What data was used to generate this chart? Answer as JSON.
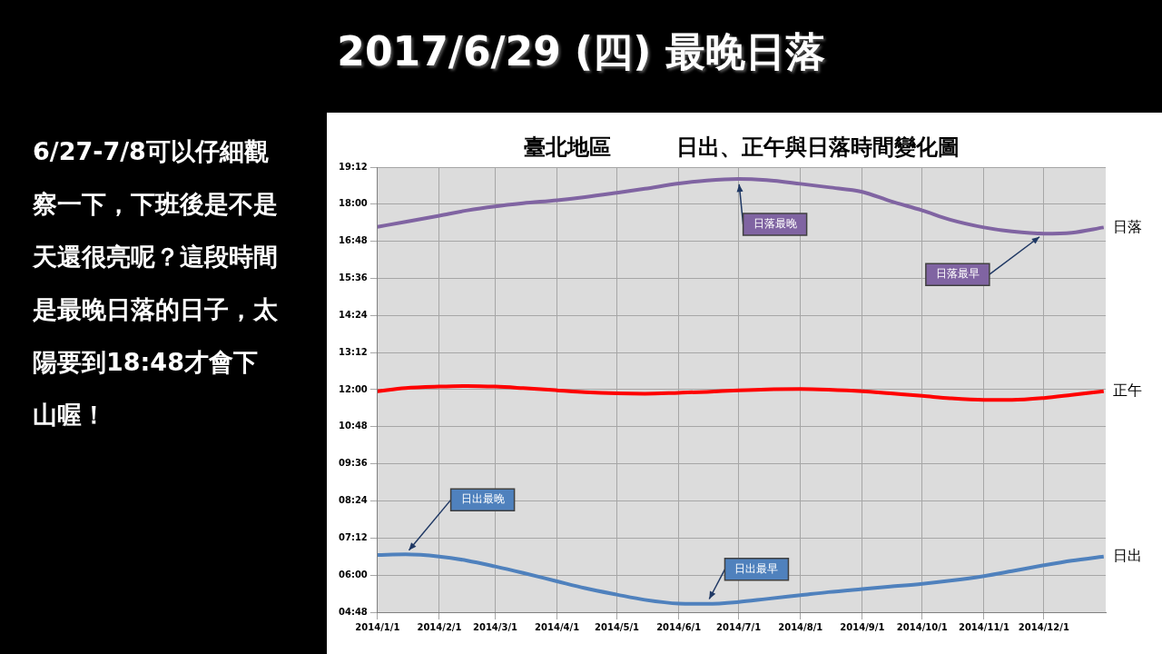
{
  "chart_data": {
    "type": "line",
    "title": "2017/6/29 (四) 最晚日落",
    "subtitle": "臺北地區　　　日出、正午與日落時間變化圖",
    "x": [
      "2014-01-01",
      "2014-01-15",
      "2014-02-01",
      "2014-02-15",
      "2014-03-01",
      "2014-03-15",
      "2014-04-01",
      "2014-04-15",
      "2014-05-01",
      "2014-05-15",
      "2014-06-01",
      "2014-06-15",
      "2014-07-01",
      "2014-07-15",
      "2014-08-01",
      "2014-08-15",
      "2014-09-01",
      "2014-09-15",
      "2014-10-01",
      "2014-10-15",
      "2014-11-01",
      "2014-11-15",
      "2014-12-01",
      "2014-12-15",
      "2014-12-31"
    ],
    "series": [
      {
        "name": "日落",
        "color": "#8064a2",
        "values": [
          17.27,
          17.43,
          17.63,
          17.8,
          17.93,
          18.03,
          18.13,
          18.23,
          18.37,
          18.5,
          18.67,
          18.77,
          18.82,
          18.78,
          18.66,
          18.55,
          18.4,
          18.1,
          17.8,
          17.5,
          17.25,
          17.12,
          17.05,
          17.08,
          17.25
        ]
      },
      {
        "name": "正午",
        "color": "#ff0000",
        "values": [
          11.95,
          12.05,
          12.1,
          12.12,
          12.1,
          12.05,
          11.98,
          11.92,
          11.88,
          11.87,
          11.9,
          11.93,
          11.98,
          12.01,
          12.02,
          12,
          11.95,
          11.88,
          11.8,
          11.72,
          11.67,
          11.67,
          11.73,
          11.83,
          11.95
        ]
      },
      {
        "name": "日出",
        "color": "#4f81bd",
        "values": [
          6.65,
          6.67,
          6.6,
          6.47,
          6.28,
          6.07,
          5.8,
          5.58,
          5.37,
          5.2,
          5.08,
          5.07,
          5.13,
          5.23,
          5.35,
          5.45,
          5.55,
          5.63,
          5.72,
          5.82,
          5.97,
          6.13,
          6.32,
          6.47,
          6.6
        ]
      }
    ],
    "xlim": [
      "2014-01-01",
      "2015-01-01"
    ],
    "xticks": [
      {
        "value": "2014-01-01",
        "label": "2014/1/1"
      },
      {
        "value": "2014-02-01",
        "label": "2014/2/1"
      },
      {
        "value": "2014-03-01",
        "label": "2014/3/1"
      },
      {
        "value": "2014-04-01",
        "label": "2014/4/1"
      },
      {
        "value": "2014-05-01",
        "label": "2014/5/1"
      },
      {
        "value": "2014-06-01",
        "label": "2014/6/1"
      },
      {
        "value": "2014-07-01",
        "label": "2014/7/1"
      },
      {
        "value": "2014-08-01",
        "label": "2014/8/1"
      },
      {
        "value": "2014-09-01",
        "label": "2014/9/1"
      },
      {
        "value": "2014-10-01",
        "label": "2014/10/1"
      },
      {
        "value": "2014-11-01",
        "label": "2014/11/1"
      },
      {
        "value": "2014-12-01",
        "label": "2014/12/1"
      }
    ],
    "ylim": [
      4.8,
      19.2
    ],
    "yticks": [
      {
        "value": 4.8,
        "label": "04:48"
      },
      {
        "value": 6,
        "label": "06:00"
      },
      {
        "value": 7.2,
        "label": "07:12"
      },
      {
        "value": 8.4,
        "label": "08:24"
      },
      {
        "value": 9.6,
        "label": "09:36"
      },
      {
        "value": 10.8,
        "label": "10:48"
      },
      {
        "value": 12,
        "label": "12:00"
      },
      {
        "value": 13.2,
        "label": "13:12"
      },
      {
        "value": 14.4,
        "label": "14:24"
      },
      {
        "value": 15.6,
        "label": "15:36"
      },
      {
        "value": 16.8,
        "label": "16:48"
      },
      {
        "value": 18,
        "label": "18:00"
      },
      {
        "value": 19.2,
        "label": "19:12"
      }
    ],
    "grid": true,
    "legend": false,
    "marker": "none",
    "line_style": "solid",
    "annotations": [
      "6/27-7/8可以仔細觀察一下，下班後是不是天還很亮呢？這段時間是最晚日落的日子，太陽要到18:48才會下山喔！",
      {
        "text": "日落最晚",
        "x": "2014-07-01",
        "y": 18.82
      },
      {
        "text": "日落最早",
        "x": "2014-12-01",
        "y": 17.05
      },
      {
        "text": "日出最晚",
        "x": "2014-01-15",
        "y": 6.67
      },
      {
        "text": "日出最早",
        "x": "2014-06-15",
        "y": 5.07
      }
    ]
  }
}
